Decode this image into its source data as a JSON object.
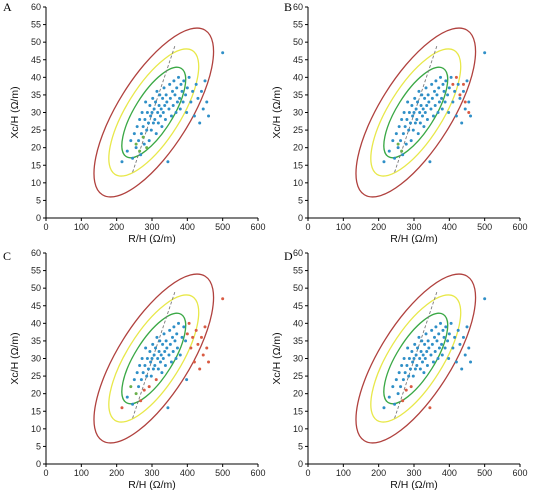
{
  "figure": {
    "panels": [
      "A",
      "B",
      "C",
      "D"
    ]
  },
  "style": {
    "axis_color": "#000000",
    "ellipse_colors": [
      "#b0413e",
      "#e8e84a",
      "#3aa845"
    ],
    "regression_line_color": "#7a7a7a",
    "point_color_default": "#2f8fc7",
    "point_color_group2": "#d95b43",
    "point_color_group3": "#6ab04c"
  },
  "chart_data": [
    {
      "panel": "A",
      "type": "scatter",
      "title": "",
      "xlabel": "R/H (Ω/m)",
      "ylabel": "Xc/H (Ω/m)",
      "xlim": [
        0,
        600
      ],
      "ylim": [
        0,
        60
      ],
      "xticks": [
        "0",
        "100",
        "200",
        "300",
        "400",
        "500",
        "600"
      ],
      "yticks": [
        "0",
        "5",
        "10",
        "15",
        "20",
        "25",
        "30",
        "35",
        "40",
        "45",
        "50",
        "55",
        "60"
      ],
      "reference_ellipses": [
        "95%",
        "75%",
        "50%"
      ],
      "points_blue": [
        [
          215,
          16
        ],
        [
          230,
          19
        ],
        [
          240,
          22
        ],
        [
          245,
          17
        ],
        [
          250,
          24
        ],
        [
          255,
          20
        ],
        [
          258,
          26
        ],
        [
          262,
          22
        ],
        [
          265,
          28
        ],
        [
          268,
          18
        ],
        [
          270,
          24
        ],
        [
          272,
          30
        ],
        [
          275,
          26
        ],
        [
          278,
          21
        ],
        [
          280,
          28
        ],
        [
          282,
          33
        ],
        [
          285,
          25
        ],
        [
          287,
          30
        ],
        [
          290,
          27
        ],
        [
          292,
          22
        ],
        [
          294,
          32
        ],
        [
          296,
          29
        ],
        [
          298,
          25
        ],
        [
          300,
          30
        ],
        [
          302,
          34
        ],
        [
          304,
          27
        ],
        [
          306,
          31
        ],
        [
          308,
          28
        ],
        [
          310,
          33
        ],
        [
          312,
          24
        ],
        [
          314,
          36
        ],
        [
          316,
          30
        ],
        [
          318,
          27
        ],
        [
          320,
          32
        ],
        [
          322,
          35
        ],
        [
          324,
          29
        ],
        [
          326,
          31
        ],
        [
          328,
          26
        ],
        [
          330,
          34
        ],
        [
          332,
          30
        ],
        [
          334,
          37
        ],
        [
          336,
          32
        ],
        [
          338,
          28
        ],
        [
          340,
          35
        ],
        [
          342,
          33
        ],
        [
          345,
          16
        ],
        [
          348,
          31
        ],
        [
          350,
          38
        ],
        [
          352,
          34
        ],
        [
          355,
          29
        ],
        [
          358,
          36
        ],
        [
          360,
          32
        ],
        [
          362,
          39
        ],
        [
          365,
          35
        ],
        [
          368,
          30
        ],
        [
          370,
          37
        ],
        [
          372,
          33
        ],
        [
          375,
          40
        ],
        [
          378,
          34
        ],
        [
          380,
          31
        ],
        [
          382,
          38
        ],
        [
          385,
          36
        ],
        [
          388,
          33
        ],
        [
          390,
          39
        ],
        [
          395,
          35
        ],
        [
          398,
          30
        ],
        [
          400,
          37
        ],
        [
          405,
          40
        ],
        [
          410,
          33
        ],
        [
          415,
          36
        ],
        [
          420,
          29
        ],
        [
          425,
          38
        ],
        [
          430,
          34
        ],
        [
          435,
          27
        ],
        [
          440,
          36
        ],
        [
          445,
          31
        ],
        [
          450,
          39
        ],
        [
          455,
          33
        ],
        [
          460,
          29
        ],
        [
          500,
          47
        ]
      ],
      "points_red": [],
      "points_green": [
        [
          255,
          21
        ],
        [
          265,
          19
        ],
        [
          275,
          23
        ],
        [
          285,
          20
        ]
      ]
    },
    {
      "panel": "B",
      "type": "scatter",
      "title": "",
      "xlabel": "R/H (Ω/m)",
      "ylabel": "Xc/H (Ω/m)",
      "xlim": [
        0,
        600
      ],
      "ylim": [
        0,
        60
      ],
      "xticks": [
        "0",
        "100",
        "200",
        "300",
        "400",
        "500",
        "600"
      ],
      "yticks": [
        "0",
        "5",
        "10",
        "15",
        "20",
        "25",
        "30",
        "35",
        "40",
        "45",
        "50",
        "55",
        "60"
      ],
      "reference_ellipses": [
        "95%",
        "75%",
        "50%"
      ],
      "points_blue": [
        [
          215,
          16
        ],
        [
          230,
          19
        ],
        [
          240,
          22
        ],
        [
          245,
          17
        ],
        [
          250,
          24
        ],
        [
          255,
          20
        ],
        [
          258,
          26
        ],
        [
          262,
          22
        ],
        [
          265,
          28
        ],
        [
          268,
          18
        ],
        [
          270,
          24
        ],
        [
          272,
          30
        ],
        [
          275,
          26
        ],
        [
          278,
          21
        ],
        [
          280,
          28
        ],
        [
          282,
          33
        ],
        [
          285,
          25
        ],
        [
          287,
          30
        ],
        [
          290,
          27
        ],
        [
          292,
          22
        ],
        [
          294,
          32
        ],
        [
          296,
          29
        ],
        [
          298,
          25
        ],
        [
          300,
          30
        ],
        [
          302,
          34
        ],
        [
          304,
          27
        ],
        [
          306,
          31
        ],
        [
          308,
          28
        ],
        [
          310,
          33
        ],
        [
          312,
          24
        ],
        [
          314,
          36
        ],
        [
          316,
          30
        ],
        [
          318,
          27
        ],
        [
          320,
          32
        ],
        [
          322,
          35
        ],
        [
          324,
          29
        ],
        [
          326,
          31
        ],
        [
          328,
          26
        ],
        [
          330,
          34
        ],
        [
          332,
          30
        ],
        [
          334,
          37
        ],
        [
          336,
          32
        ],
        [
          338,
          28
        ],
        [
          340,
          35
        ],
        [
          342,
          33
        ],
        [
          345,
          16
        ],
        [
          348,
          31
        ],
        [
          350,
          38
        ],
        [
          352,
          34
        ],
        [
          355,
          29
        ],
        [
          358,
          36
        ],
        [
          360,
          32
        ],
        [
          362,
          39
        ],
        [
          365,
          35
        ],
        [
          368,
          30
        ],
        [
          370,
          37
        ],
        [
          372,
          33
        ],
        [
          375,
          40
        ],
        [
          378,
          34
        ],
        [
          380,
          31
        ],
        [
          382,
          38
        ],
        [
          385,
          36
        ],
        [
          388,
          33
        ],
        [
          390,
          39
        ],
        [
          395,
          35
        ],
        [
          398,
          30
        ],
        [
          400,
          37
        ],
        [
          405,
          40
        ],
        [
          410,
          33
        ],
        [
          415,
          36
        ],
        [
          420,
          29
        ],
        [
          425,
          38
        ],
        [
          430,
          34
        ],
        [
          435,
          27
        ],
        [
          440,
          36
        ],
        [
          445,
          31
        ],
        [
          450,
          39
        ],
        [
          455,
          33
        ],
        [
          460,
          29
        ],
        [
          500,
          47
        ]
      ],
      "points_red": [
        [
          410,
          38
        ],
        [
          420,
          40
        ],
        [
          430,
          35
        ],
        [
          440,
          38
        ],
        [
          445,
          33
        ],
        [
          455,
          30
        ]
      ],
      "points_green": [
        [
          255,
          21
        ],
        [
          265,
          19
        ]
      ]
    },
    {
      "panel": "C",
      "type": "scatter",
      "title": "",
      "xlabel": "R/H (Ω/m)",
      "ylabel": "Xc/H (Ω/m)",
      "xlim": [
        0,
        600
      ],
      "ylim": [
        0,
        60
      ],
      "xticks": [
        "0",
        "100",
        "200",
        "300",
        "400",
        "500",
        "600"
      ],
      "yticks": [
        "0",
        "5",
        "10",
        "15",
        "20",
        "25",
        "30",
        "35",
        "40",
        "45",
        "50",
        "55",
        "60"
      ],
      "reference_ellipses": [
        "95%",
        "75%",
        "50%"
      ],
      "points_blue": [
        [
          230,
          19
        ],
        [
          245,
          17
        ],
        [
          250,
          24
        ],
        [
          258,
          26
        ],
        [
          262,
          22
        ],
        [
          265,
          28
        ],
        [
          270,
          24
        ],
        [
          272,
          30
        ],
        [
          275,
          26
        ],
        [
          280,
          28
        ],
        [
          282,
          33
        ],
        [
          285,
          25
        ],
        [
          287,
          30
        ],
        [
          290,
          27
        ],
        [
          294,
          32
        ],
        [
          296,
          29
        ],
        [
          298,
          25
        ],
        [
          300,
          30
        ],
        [
          302,
          34
        ],
        [
          304,
          27
        ],
        [
          306,
          31
        ],
        [
          308,
          28
        ],
        [
          310,
          33
        ],
        [
          314,
          36
        ],
        [
          316,
          30
        ],
        [
          318,
          27
        ],
        [
          320,
          32
        ],
        [
          322,
          35
        ],
        [
          324,
          29
        ],
        [
          326,
          31
        ],
        [
          328,
          26
        ],
        [
          330,
          34
        ],
        [
          332,
          30
        ],
        [
          334,
          37
        ],
        [
          336,
          32
        ],
        [
          338,
          28
        ],
        [
          340,
          35
        ],
        [
          342,
          33
        ],
        [
          345,
          16
        ],
        [
          348,
          31
        ],
        [
          350,
          38
        ],
        [
          352,
          34
        ],
        [
          355,
          29
        ],
        [
          358,
          36
        ],
        [
          360,
          32
        ],
        [
          362,
          39
        ],
        [
          365,
          35
        ],
        [
          368,
          30
        ],
        [
          370,
          37
        ],
        [
          372,
          33
        ],
        [
          375,
          40
        ],
        [
          380,
          31
        ],
        [
          385,
          36
        ],
        [
          390,
          39
        ],
        [
          395,
          35
        ],
        [
          398,
          24
        ]
      ],
      "points_red": [
        [
          215,
          16
        ],
        [
          268,
          18
        ],
        [
          278,
          21
        ],
        [
          292,
          22
        ],
        [
          312,
          24
        ],
        [
          400,
          37
        ],
        [
          405,
          40
        ],
        [
          410,
          33
        ],
        [
          415,
          36
        ],
        [
          420,
          29
        ],
        [
          425,
          38
        ],
        [
          430,
          34
        ],
        [
          435,
          27
        ],
        [
          440,
          36
        ],
        [
          445,
          31
        ],
        [
          450,
          39
        ],
        [
          455,
          33
        ],
        [
          460,
          29
        ],
        [
          500,
          47
        ]
      ],
      "points_green": [
        [
          240,
          22
        ],
        [
          255,
          20
        ]
      ]
    },
    {
      "panel": "D",
      "type": "scatter",
      "title": "",
      "xlabel": "R/H (Ω/m)",
      "ylabel": "Xc/H (Ω/m)",
      "xlim": [
        0,
        600
      ],
      "ylim": [
        0,
        60
      ],
      "xticks": [
        "0",
        "100",
        "200",
        "300",
        "400",
        "500",
        "600"
      ],
      "yticks": [
        "0",
        "5",
        "10",
        "15",
        "20",
        "25",
        "30",
        "35",
        "40",
        "45",
        "50",
        "55",
        "60"
      ],
      "reference_ellipses": [
        "95%",
        "75%",
        "50%"
      ],
      "points_blue": [
        [
          215,
          16
        ],
        [
          230,
          19
        ],
        [
          240,
          22
        ],
        [
          245,
          17
        ],
        [
          250,
          24
        ],
        [
          255,
          20
        ],
        [
          258,
          26
        ],
        [
          262,
          22
        ],
        [
          265,
          28
        ],
        [
          270,
          24
        ],
        [
          272,
          30
        ],
        [
          275,
          26
        ],
        [
          280,
          28
        ],
        [
          282,
          33
        ],
        [
          285,
          25
        ],
        [
          287,
          30
        ],
        [
          290,
          27
        ],
        [
          294,
          32
        ],
        [
          296,
          29
        ],
        [
          298,
          25
        ],
        [
          300,
          30
        ],
        [
          302,
          34
        ],
        [
          304,
          27
        ],
        [
          306,
          31
        ],
        [
          308,
          28
        ],
        [
          310,
          33
        ],
        [
          314,
          36
        ],
        [
          316,
          30
        ],
        [
          318,
          27
        ],
        [
          320,
          32
        ],
        [
          322,
          35
        ],
        [
          324,
          29
        ],
        [
          326,
          31
        ],
        [
          328,
          26
        ],
        [
          330,
          34
        ],
        [
          332,
          30
        ],
        [
          334,
          37
        ],
        [
          336,
          32
        ],
        [
          338,
          28
        ],
        [
          340,
          35
        ],
        [
          342,
          33
        ],
        [
          348,
          31
        ],
        [
          350,
          38
        ],
        [
          352,
          34
        ],
        [
          355,
          29
        ],
        [
          358,
          36
        ],
        [
          360,
          32
        ],
        [
          362,
          39
        ],
        [
          365,
          35
        ],
        [
          368,
          30
        ],
        [
          370,
          37
        ],
        [
          372,
          33
        ],
        [
          375,
          40
        ],
        [
          378,
          34
        ],
        [
          380,
          31
        ],
        [
          382,
          38
        ],
        [
          385,
          36
        ],
        [
          388,
          33
        ],
        [
          390,
          39
        ],
        [
          395,
          35
        ],
        [
          398,
          30
        ],
        [
          400,
          37
        ],
        [
          405,
          40
        ],
        [
          410,
          33
        ],
        [
          415,
          36
        ],
        [
          420,
          29
        ],
        [
          425,
          38
        ],
        [
          430,
          34
        ],
        [
          435,
          27
        ],
        [
          440,
          36
        ],
        [
          445,
          31
        ],
        [
          450,
          39
        ],
        [
          455,
          33
        ],
        [
          460,
          29
        ],
        [
          500,
          47
        ]
      ],
      "points_red": [
        [
          268,
          18
        ],
        [
          278,
          21
        ],
        [
          292,
          22
        ],
        [
          345,
          16
        ]
      ],
      "points_green": []
    }
  ]
}
